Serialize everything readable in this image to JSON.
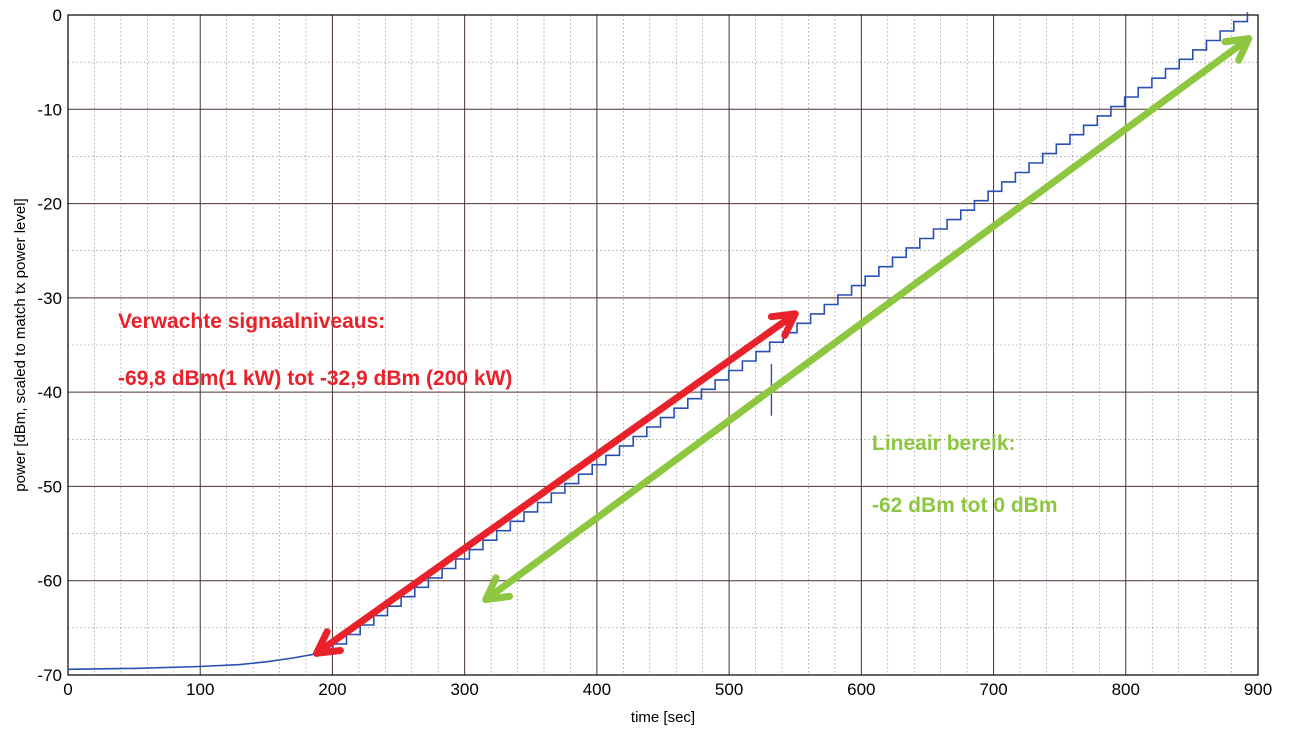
{
  "chart_data": {
    "type": "line",
    "title": "",
    "xlabel": "time [sec]",
    "ylabel": "power [dBm, scaled to match tx power level]",
    "xlim": [
      0,
      900
    ],
    "ylim": [
      -70,
      0
    ],
    "xticks": [
      0,
      100,
      200,
      300,
      400,
      500,
      600,
      700,
      800,
      900
    ],
    "yticks": [
      0,
      -10,
      -20,
      -30,
      -40,
      -50,
      -60,
      -70
    ],
    "xtick_labels": [
      "0",
      "100",
      "200",
      "300",
      "400",
      "500",
      "600",
      "700",
      "800",
      "900"
    ],
    "ytick_labels": [
      "0",
      "-10",
      "-20",
      "-30",
      "-40",
      "-50",
      "-60",
      "-70"
    ],
    "grid": {
      "major": true,
      "minor": true
    },
    "series": [
      {
        "color": "#2a4fb4",
        "noise_floor": [
          [
            0,
            -69.4
          ],
          [
            50,
            -69.3
          ],
          [
            100,
            -69.1
          ],
          [
            130,
            -68.9
          ],
          [
            150,
            -68.6
          ],
          [
            170,
            -68.2
          ],
          [
            190,
            -67.7
          ]
        ],
        "step_start_sec": 190,
        "step_start_dBm": -67.7,
        "step_end_sec": 892,
        "step_end_dBm": 0,
        "step_duration_sec": 10,
        "step_size_dB": 1,
        "spike": {
          "x": 532,
          "y_from": -37,
          "y_to": -42.5
        }
      }
    ],
    "annotations": [
      {
        "color": "#e8212a",
        "arrow_from": [
          188,
          -67.7
        ],
        "arrow_to": [
          550,
          -31.7
        ],
        "line1": "Verwachte signaalniveaus:",
        "line2": "-69,8 dBm(1 kW) tot -32,9 dBm (200 kW)"
      },
      {
        "color": "#8dc63f",
        "arrow_from": [
          316,
          -62
        ],
        "arrow_to": [
          893,
          -2.5
        ],
        "line1": "Lineair bereik:",
        "line2": "-62 dBm tot 0 dBm"
      }
    ]
  }
}
